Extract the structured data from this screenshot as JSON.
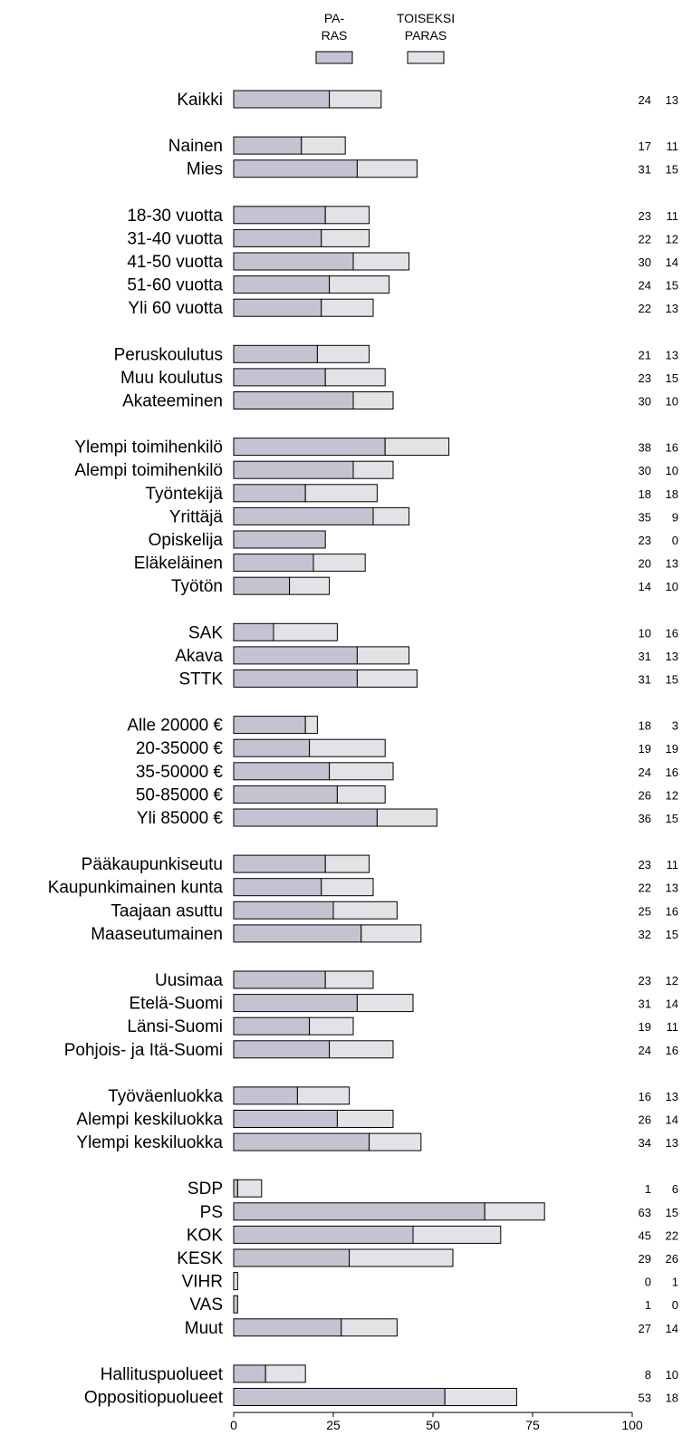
{
  "colors": {
    "paras": "#c5c3d1",
    "toiseksi_paras": "#e4e1e7",
    "stroke": "#000000"
  },
  "legend": {
    "paras_line1": "PA-",
    "paras_line2": "RAS",
    "toiseksi_line1": "TOISEKSI",
    "toiseksi_line2": "PARAS"
  },
  "chart_data": {
    "type": "bar",
    "orientation": "horizontal",
    "stacked": true,
    "xlim": [
      0,
      100
    ],
    "xticks": [
      "0",
      "25",
      "50",
      "75",
      "100"
    ],
    "series": [
      {
        "name": "PARAS"
      },
      {
        "name": "TOISEKSI PARAS"
      }
    ],
    "groups": [
      [
        {
          "label": "Kaikki",
          "paras": 24,
          "toiseksi": 13
        }
      ],
      [
        {
          "label": "Nainen",
          "paras": 17,
          "toiseksi": 11
        },
        {
          "label": "Mies",
          "paras": 31,
          "toiseksi": 15
        }
      ],
      [
        {
          "label": "18-30 vuotta",
          "paras": 23,
          "toiseksi": 11
        },
        {
          "label": "31-40 vuotta",
          "paras": 22,
          "toiseksi": 12
        },
        {
          "label": "41-50 vuotta",
          "paras": 30,
          "toiseksi": 14
        },
        {
          "label": "51-60 vuotta",
          "paras": 24,
          "toiseksi": 15
        },
        {
          "label": "Yli 60 vuotta",
          "paras": 22,
          "toiseksi": 13
        }
      ],
      [
        {
          "label": "Peruskoulutus",
          "paras": 21,
          "toiseksi": 13
        },
        {
          "label": "Muu koulutus",
          "paras": 23,
          "toiseksi": 15
        },
        {
          "label": "Akateeminen",
          "paras": 30,
          "toiseksi": 10
        }
      ],
      [
        {
          "label": "Ylempi toimihenkilö",
          "paras": 38,
          "toiseksi": 16
        },
        {
          "label": "Alempi toimihenkilö",
          "paras": 30,
          "toiseksi": 10
        },
        {
          "label": "Työntekijä",
          "paras": 18,
          "toiseksi": 18
        },
        {
          "label": "Yrittäjä",
          "paras": 35,
          "toiseksi": 9
        },
        {
          "label": "Opiskelija",
          "paras": 23,
          "toiseksi": 0
        },
        {
          "label": "Eläkeläinen",
          "paras": 20,
          "toiseksi": 13
        },
        {
          "label": "Työtön",
          "paras": 14,
          "toiseksi": 10
        }
      ],
      [
        {
          "label": "SAK",
          "paras": 10,
          "toiseksi": 16
        },
        {
          "label": "Akava",
          "paras": 31,
          "toiseksi": 13
        },
        {
          "label": "STTK",
          "paras": 31,
          "toiseksi": 15
        }
      ],
      [
        {
          "label": "Alle 20000 €",
          "paras": 18,
          "toiseksi": 3
        },
        {
          "label": "20-35000 €",
          "paras": 19,
          "toiseksi": 19
        },
        {
          "label": "35-50000 €",
          "paras": 24,
          "toiseksi": 16
        },
        {
          "label": "50-85000 €",
          "paras": 26,
          "toiseksi": 12
        },
        {
          "label": "Yli 85000 €",
          "paras": 36,
          "toiseksi": 15
        }
      ],
      [
        {
          "label": "Pääkaupunkiseutu",
          "paras": 23,
          "toiseksi": 11
        },
        {
          "label": "Kaupunkimainen kunta",
          "paras": 22,
          "toiseksi": 13
        },
        {
          "label": "Taajaan asuttu",
          "paras": 25,
          "toiseksi": 16
        },
        {
          "label": "Maaseutumainen",
          "paras": 32,
          "toiseksi": 15
        }
      ],
      [
        {
          "label": "Uusimaa",
          "paras": 23,
          "toiseksi": 12
        },
        {
          "label": "Etelä-Suomi",
          "paras": 31,
          "toiseksi": 14
        },
        {
          "label": "Länsi-Suomi",
          "paras": 19,
          "toiseksi": 11
        },
        {
          "label": "Pohjois- ja Itä-Suomi",
          "paras": 24,
          "toiseksi": 16
        }
      ],
      [
        {
          "label": "Työväenluokka",
          "paras": 16,
          "toiseksi": 13
        },
        {
          "label": "Alempi keskiluokka",
          "paras": 26,
          "toiseksi": 14
        },
        {
          "label": "Ylempi keskiluokka",
          "paras": 34,
          "toiseksi": 13
        }
      ],
      [
        {
          "label": "SDP",
          "paras": 1,
          "toiseksi": 6
        },
        {
          "label": "PS",
          "paras": 63,
          "toiseksi": 15
        },
        {
          "label": "KOK",
          "paras": 45,
          "toiseksi": 22
        },
        {
          "label": "KESK",
          "paras": 29,
          "toiseksi": 26
        },
        {
          "label": "VIHR",
          "paras": 0,
          "toiseksi": 1
        },
        {
          "label": "VAS",
          "paras": 1,
          "toiseksi": 0
        },
        {
          "label": "Muut",
          "paras": 27,
          "toiseksi": 14
        }
      ],
      [
        {
          "label": "Hallituspuolueet",
          "paras": 8,
          "toiseksi": 10
        },
        {
          "label": "Oppositiopuolueet",
          "paras": 53,
          "toiseksi": 18
        }
      ]
    ]
  }
}
